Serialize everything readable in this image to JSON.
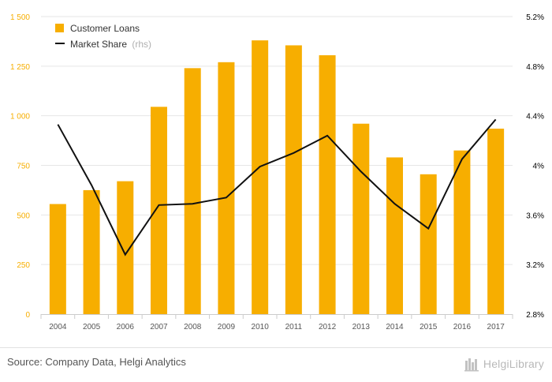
{
  "chart_data": {
    "type": "bar",
    "categories": [
      "2004",
      "2005",
      "2006",
      "2007",
      "2008",
      "2009",
      "2010",
      "2011",
      "2012",
      "2013",
      "2014",
      "2015",
      "2016",
      "2017"
    ],
    "series": [
      {
        "name": "Customer Loans",
        "type": "bar",
        "axis": "left",
        "color": "#F7AE00",
        "values": [
          555,
          625,
          670,
          1045,
          1240,
          1270,
          1380,
          1355,
          1305,
          960,
          790,
          705,
          825,
          935
        ]
      },
      {
        "name": "Market Share",
        "legend_suffix": "(rhs)",
        "type": "line",
        "axis": "right",
        "color": "#111111",
        "values": [
          4.33,
          3.84,
          3.28,
          3.68,
          3.69,
          3.74,
          3.99,
          4.1,
          4.24,
          3.95,
          3.69,
          3.49,
          4.05,
          4.37
        ]
      }
    ],
    "y_left": {
      "ylim": [
        0,
        1500
      ],
      "ticks": [
        0,
        250,
        500,
        750,
        1000,
        1250,
        1500
      ],
      "tick_labels": [
        "0",
        "250",
        "500",
        "750",
        "1 000",
        "1 250",
        "1 500"
      ],
      "color": "#F7AE00"
    },
    "y_right": {
      "ylim": [
        2.8,
        5.2
      ],
      "ticks": [
        2.8,
        3.2,
        3.6,
        4.0,
        4.4,
        4.8,
        5.2
      ],
      "tick_labels": [
        "2.8%",
        "3.2%",
        "3.6%",
        "4%",
        "4.4%",
        "4.8%",
        "5.2%"
      ],
      "color": "#000000"
    },
    "legend_position": "top-left",
    "grid": true
  },
  "footer": {
    "source": "Source: Company Data, Helgi Analytics",
    "logo_text": "HelgiLibrary"
  }
}
